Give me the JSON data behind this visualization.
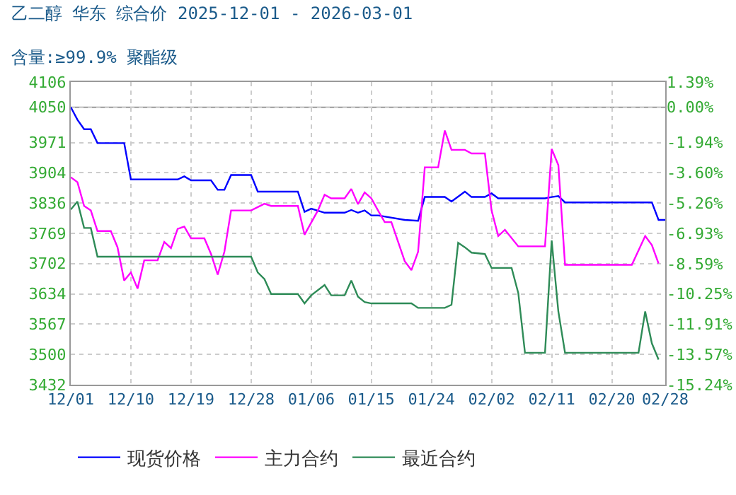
{
  "chart_data": {
    "type": "line",
    "title": "乙二醇 华东 综合价 2025-12-01 - 2026-03-01",
    "subtitle": "含量:≥99.9% 聚酯级",
    "xlim": [
      "2025-12-01",
      "2026-02-28"
    ],
    "xticks": [
      {
        "value": "2025-12-01",
        "label": "12/01"
      },
      {
        "value": "2025-12-10",
        "label": "12/10"
      },
      {
        "value": "2025-12-19",
        "label": "12/19"
      },
      {
        "value": "2025-12-28",
        "label": "12/28"
      },
      {
        "value": "2026-01-06",
        "label": "01/06"
      },
      {
        "value": "2026-01-15",
        "label": "01/15"
      },
      {
        "value": "2026-01-24",
        "label": "01/24"
      },
      {
        "value": "2026-02-02",
        "label": "02/02"
      },
      {
        "value": "2026-02-11",
        "label": "02/11"
      },
      {
        "value": "2026-02-20",
        "label": "02/20"
      },
      {
        "value": "2026-02-28",
        "label": "02/28"
      }
    ],
    "ylim": [
      3432,
      4106
    ],
    "yticks": [
      3432,
      3500,
      3567,
      3634,
      3702,
      3769,
      3836,
      3904,
      3971,
      4050,
      4106
    ],
    "y2lim": [
      -15.24,
      1.39
    ],
    "y2ticks": [
      {
        "value": -15.24,
        "label": "-15.24%"
      },
      {
        "value": -13.57,
        "label": "-13.57%"
      },
      {
        "value": -11.91,
        "label": "-11.91%"
      },
      {
        "value": -10.25,
        "label": "-10.25%"
      },
      {
        "value": -8.59,
        "label": "-8.59%"
      },
      {
        "value": -6.93,
        "label": "-6.93%"
      },
      {
        "value": -5.26,
        "label": "-5.26%"
      },
      {
        "value": -3.6,
        "label": "-3.60%"
      },
      {
        "value": -1.94,
        "label": "-1.94%"
      },
      {
        "value": 0,
        "label": "0.00%"
      },
      {
        "value": 1.39,
        "label": "1.39%"
      }
    ],
    "ref_lines": [
      {
        "axis": "y2",
        "value": 0,
        "color": "#999999",
        "line_style": "solid"
      }
    ],
    "grid": true,
    "legend": "bottom",
    "marker": "none",
    "line_style": "solid",
    "series": [
      {
        "name": "现货价格",
        "color": "#0000ff",
        "x": [
          "2025-12-01",
          "2025-12-02",
          "2025-12-03",
          "2025-12-04",
          "2025-12-05",
          "2025-12-09",
          "2025-12-10",
          "2025-12-17",
          "2025-12-18",
          "2025-12-19",
          "2025-12-22",
          "2025-12-23",
          "2025-12-24",
          "2025-12-25",
          "2025-12-28",
          "2025-12-29",
          "2026-01-04",
          "2026-01-05",
          "2026-01-06",
          "2026-01-08",
          "2026-01-11",
          "2026-01-12",
          "2026-01-13",
          "2026-01-14",
          "2026-01-15",
          "2026-01-16",
          "2026-01-20",
          "2026-01-22",
          "2026-01-23",
          "2026-01-26",
          "2026-01-27",
          "2026-01-29",
          "2026-01-30",
          "2026-02-01",
          "2026-02-02",
          "2026-02-03",
          "2026-02-10",
          "2026-02-11",
          "2026-02-12",
          "2026-02-13",
          "2026-02-26",
          "2026-02-27",
          "2026-02-28"
        ],
        "values": [
          4050,
          4022,
          4001,
          4001,
          3970,
          3970,
          3889,
          3889,
          3896,
          3887,
          3887,
          3866,
          3866,
          3899,
          3899,
          3862,
          3862,
          3817,
          3824,
          3815,
          3815,
          3821,
          3815,
          3820,
          3809,
          3809,
          3799,
          3797,
          3850,
          3850,
          3840,
          3862,
          3850,
          3850,
          3858,
          3847,
          3847,
          3850,
          3852,
          3838,
          3838,
          3799,
          3799
        ]
      },
      {
        "name": "主力合约",
        "color": "#ff00ff",
        "x": [
          "2025-12-01",
          "2025-12-02",
          "2025-12-03",
          "2025-12-04",
          "2025-12-05",
          "2025-12-07",
          "2025-12-08",
          "2025-12-09",
          "2025-12-10",
          "2025-12-11",
          "2025-12-12",
          "2025-12-14",
          "2025-12-15",
          "2025-12-16",
          "2025-12-17",
          "2025-12-18",
          "2025-12-19",
          "2025-12-21",
          "2025-12-22",
          "2025-12-23",
          "2025-12-24",
          "2025-12-25",
          "2025-12-28",
          "2025-12-30",
          "2025-12-31",
          "2026-01-04",
          "2026-01-05",
          "2026-01-07",
          "2026-01-08",
          "2026-01-09",
          "2026-01-11",
          "2026-01-12",
          "2026-01-13",
          "2026-01-14",
          "2026-01-15",
          "2026-01-16",
          "2026-01-17",
          "2026-01-18",
          "2026-01-20",
          "2026-01-21",
          "2026-01-22",
          "2026-01-23",
          "2026-01-25",
          "2026-01-26",
          "2026-01-27",
          "2026-01-29",
          "2026-01-30",
          "2026-02-01",
          "2026-02-02",
          "2026-02-03",
          "2026-02-04",
          "2026-02-06",
          "2026-02-10",
          "2026-02-11",
          "2026-02-12",
          "2026-02-13",
          "2026-02-23",
          "2026-02-25",
          "2026-02-26",
          "2026-02-27"
        ],
        "values": [
          3894,
          3883,
          3830,
          3820,
          3774,
          3774,
          3738,
          3664,
          3682,
          3646,
          3709,
          3709,
          3750,
          3736,
          3779,
          3784,
          3758,
          3758,
          3723,
          3677,
          3728,
          3820,
          3820,
          3835,
          3830,
          3830,
          3766,
          3820,
          3855,
          3847,
          3847,
          3868,
          3834,
          3860,
          3847,
          3820,
          3794,
          3794,
          3707,
          3687,
          3728,
          3916,
          3916,
          3998,
          3955,
          3955,
          3947,
          3947,
          3820,
          3763,
          3777,
          3740,
          3740,
          3957,
          3921,
          3699,
          3699,
          3763,
          3743,
          3702
        ]
      },
      {
        "name": "最近合约",
        "color": "#2e8b57",
        "x": [
          "2025-12-01",
          "2025-12-02",
          "2025-12-03",
          "2025-12-04",
          "2025-12-05",
          "2025-12-28",
          "2025-12-29",
          "2025-12-30",
          "2025-12-31",
          "2026-01-04",
          "2026-01-05",
          "2026-01-06",
          "2026-01-08",
          "2026-01-09",
          "2026-01-11",
          "2026-01-12",
          "2026-01-13",
          "2026-01-14",
          "2026-01-15",
          "2026-01-21",
          "2026-01-22",
          "2026-01-26",
          "2026-01-27",
          "2026-01-28",
          "2026-01-29",
          "2026-01-30",
          "2026-02-01",
          "2026-02-02",
          "2026-02-05",
          "2026-02-06",
          "2026-02-07",
          "2026-02-10",
          "2026-02-11",
          "2026-02-12",
          "2026-02-13",
          "2026-02-24",
          "2026-02-25",
          "2026-02-26",
          "2026-02-27"
        ],
        "values": [
          3822,
          3840,
          3781,
          3781,
          3717,
          3717,
          3682,
          3667,
          3634,
          3634,
          3613,
          3631,
          3654,
          3631,
          3631,
          3664,
          3628,
          3616,
          3613,
          3613,
          3603,
          3603,
          3610,
          3748,
          3738,
          3726,
          3723,
          3692,
          3692,
          3636,
          3503,
          3503,
          3753,
          3595,
          3503,
          3503,
          3595,
          3524,
          3488
        ]
      }
    ]
  }
}
